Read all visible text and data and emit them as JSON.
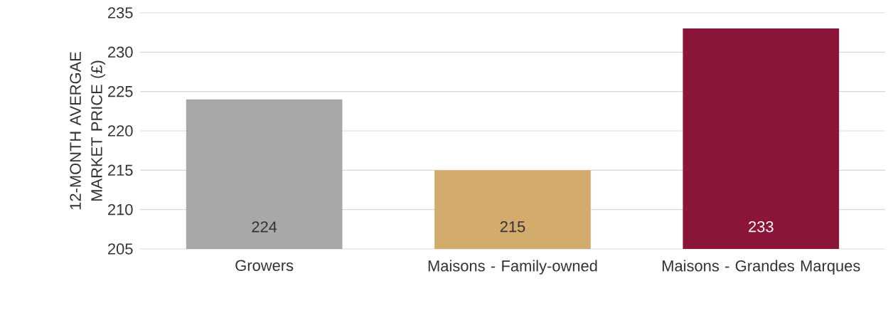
{
  "chart_data": {
    "type": "bar",
    "ylabel": "12-MONTH AVERGAE MARKET PRICE (£)",
    "categories": [
      "Growers",
      "Maisons - Family-owned",
      "Maisons - Grandes Marques"
    ],
    "values": [
      224,
      215,
      233
    ],
    "colors": [
      "#aaa8a7",
      "#d3ab6c",
      "#8b1439"
    ],
    "ylim": [
      205,
      235
    ],
    "yticks": [
      205,
      210,
      215,
      220,
      225,
      230,
      235
    ],
    "grid": "y",
    "data_labels": true
  }
}
